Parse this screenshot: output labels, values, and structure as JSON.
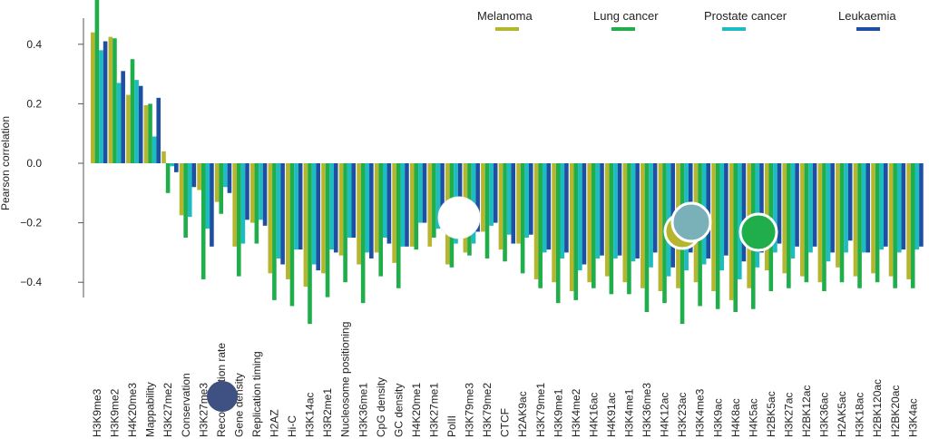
{
  "chart_data": {
    "type": "bar",
    "ylabel": "Pearson correlation",
    "ylim": [
      -0.52,
      0.56
    ],
    "yticks": [
      "0.4",
      "0.2",
      "0.0",
      "−0.2",
      "−0.4"
    ],
    "grid": false,
    "legend_position": "top-right",
    "categories": [
      "H3K9me3",
      "H3K9me2",
      "H4K20me3",
      "Mappability",
      "H3K27me2",
      "Conservation",
      "H3K27me3",
      "Recombination rate",
      "Gene density",
      "Replication timing",
      "H2AZ",
      "Hi-C",
      "H3K14ac",
      "H3R2me1",
      "Nucleosome positioning",
      "H3K36me1",
      "CpG density",
      "GC density",
      "H4K20me1",
      "H3K27me1",
      "PolII",
      "H3K79me3",
      "H3K79me2",
      "CTCF",
      "H2AK9ac",
      "H3K79me1",
      "H3K9me1",
      "H3K4me2",
      "H4K16ac",
      "H4K91ac",
      "H3K4me1",
      "H3K36me3",
      "H4K12ac",
      "H3K23ac",
      "H3K4me3",
      "H3K9ac",
      "H4K8ac",
      "H4K5ac",
      "H2BK5ac",
      "H3K27ac",
      "H2BK12ac",
      "H3K36ac",
      "H2AK5ac",
      "H3K18ac",
      "H2BK120ac",
      "H2BK20ac",
      "H3K4ac"
    ],
    "category_labels_shown": [
      "H3K9me3",
      "H3K9me2",
      "H4K20me3",
      "Mappability",
      "H3K27me2",
      "Conservation",
      "H3K27me3",
      "Recombination rate",
      "Gene density",
      "Replication timing",
      "H2AZ",
      "Hi-C",
      "H3K14ac",
      "H3R2me1",
      "Nucleosome positioning",
      "H3K36me1",
      "CpG density",
      "GC density",
      "H4K20me1",
      "H3K27me1",
      "PolII",
      "H3K79me3",
      "H3K79me2",
      "CTCF",
      "H2AK9ac",
      "H3K79me1",
      "H3K9me1",
      "H3K4me2",
      "H4K16ac",
      "H4K91ac",
      "H3K4me1",
      "H3K36me3",
      "H4K12ac",
      "H3K23ac",
      "H3K4me3",
      "H3K9ac",
      "H4K8ac",
      "H4K5ac",
      "H2BK5ac",
      "H3K27ac",
      "H2BK12ac",
      "H3K36ac",
      "H2AK5ac",
      "H3K18ac",
      "H2BK120ac",
      "H2BK20ac",
      "H3K4ac"
    ],
    "series": [
      {
        "name": "Melanoma",
        "color": "#b5b52e",
        "values": [
          0.44,
          0.425,
          0.23,
          0.195,
          0.04,
          -0.175,
          -0.09,
          -0.13,
          -0.28,
          -0.2,
          -0.37,
          -0.39,
          -0.415,
          -0.37,
          -0.31,
          -0.34,
          -0.3,
          -0.335,
          -0.28,
          -0.28,
          -0.34,
          -0.3,
          -0.23,
          -0.29,
          -0.27,
          -0.39,
          -0.4,
          -0.43,
          -0.4,
          -0.38,
          -0.4,
          -0.42,
          -0.43,
          -0.42,
          -0.4,
          -0.43,
          -0.46,
          -0.42,
          -0.36,
          -0.37,
          -0.38,
          -0.4,
          -0.35,
          -0.38,
          -0.37,
          -0.38,
          -0.39
        ]
      },
      {
        "name": "Lung cancer",
        "color": "#1fae4a",
        "values": [
          0.56,
          0.42,
          0.35,
          0.2,
          -0.1,
          -0.25,
          -0.39,
          -0.17,
          -0.38,
          -0.27,
          -0.46,
          -0.48,
          -0.54,
          -0.45,
          -0.4,
          -0.47,
          -0.38,
          -0.42,
          -0.29,
          -0.25,
          -0.35,
          -0.31,
          -0.32,
          -0.33,
          -0.37,
          -0.42,
          -0.47,
          -0.46,
          -0.42,
          -0.44,
          -0.44,
          -0.5,
          -0.47,
          -0.54,
          -0.48,
          -0.49,
          -0.5,
          -0.49,
          -0.43,
          -0.42,
          -0.4,
          -0.43,
          -0.4,
          -0.42,
          -0.4,
          -0.42,
          -0.42
        ]
      },
      {
        "name": "Prostate cancer",
        "color": "#1cbcc0",
        "values": [
          0.38,
          0.27,
          0.28,
          0.09,
          -0.01,
          -0.18,
          -0.22,
          -0.08,
          -0.27,
          -0.19,
          -0.32,
          -0.29,
          -0.34,
          -0.29,
          -0.25,
          -0.3,
          -0.25,
          -0.28,
          -0.2,
          -0.22,
          -0.27,
          -0.27,
          -0.21,
          -0.24,
          -0.25,
          -0.3,
          -0.32,
          -0.36,
          -0.32,
          -0.32,
          -0.33,
          -0.35,
          -0.38,
          -0.36,
          -0.34,
          -0.36,
          -0.39,
          -0.35,
          -0.3,
          -0.32,
          -0.3,
          -0.33,
          -0.3,
          -0.3,
          -0.29,
          -0.3,
          -0.29
        ]
      },
      {
        "name": "Leukaemia",
        "color": "#1f4fa3",
        "values": [
          0.41,
          0.31,
          0.26,
          0.22,
          -0.03,
          -0.08,
          -0.28,
          -0.1,
          -0.19,
          -0.21,
          -0.34,
          -0.29,
          -0.36,
          -0.3,
          -0.25,
          -0.32,
          -0.27,
          -0.28,
          -0.2,
          -0.21,
          -0.23,
          -0.23,
          -0.2,
          -0.27,
          -0.24,
          -0.29,
          -0.3,
          -0.34,
          -0.31,
          -0.31,
          -0.32,
          -0.3,
          -0.35,
          -0.3,
          -0.32,
          -0.31,
          -0.33,
          -0.3,
          -0.27,
          -0.28,
          -0.28,
          -0.3,
          -0.26,
          -0.3,
          -0.28,
          -0.29,
          -0.28
        ]
      }
    ]
  },
  "overlay_markers": [
    {
      "name": "dark-blue-dot",
      "color": "#3e5182"
    },
    {
      "name": "white-dot",
      "color": "#ffffff"
    },
    {
      "name": "olive-dot",
      "color": "#b5b52e"
    },
    {
      "name": "teal-dot",
      "color": "#7ab0b8"
    },
    {
      "name": "green-dot",
      "color": "#1fae4a"
    }
  ]
}
